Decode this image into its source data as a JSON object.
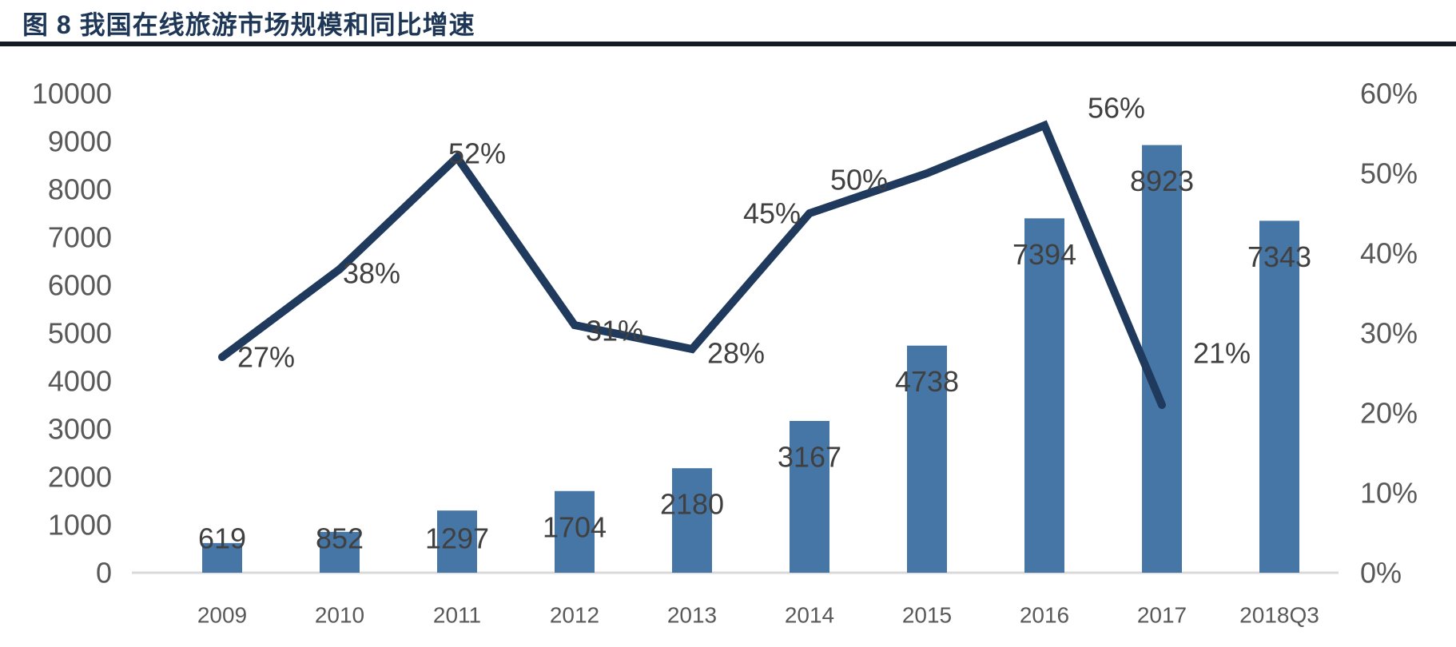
{
  "figure": {
    "title": "图 8 我国在线旅游市场规模和同比增速"
  },
  "colors": {
    "bar": "#4576A5",
    "line": "#1F3A5C",
    "axis_text": "#595959",
    "data_label_text": "#404040",
    "axis_line": "#D9D9D9",
    "title_text": "#1F3756",
    "title_rule": "#141A26"
  },
  "chart_data": {
    "type": "bar",
    "combo": "bar+line dual axis",
    "title": "图 8 我国在线旅游市场规模和同比增速",
    "xlabel": "",
    "ylabel_left": "",
    "ylabel_right": "",
    "grid": false,
    "legend": null,
    "categories": [
      "2009",
      "2010",
      "2011",
      "2012",
      "2013",
      "2014",
      "2015",
      "2016",
      "2017",
      "2018Q3"
    ],
    "series": [
      {
        "name": "在线旅游市场规模",
        "type": "bar",
        "axis": "left",
        "values": [
          619,
          852,
          1297,
          1704,
          2180,
          3167,
          4738,
          7394,
          8923,
          7343
        ],
        "labels": [
          "619",
          "852",
          "1297",
          "1704",
          "2180",
          "3167",
          "4738",
          "7394",
          "8923",
          "7343"
        ]
      },
      {
        "name": "同比增速",
        "type": "line",
        "axis": "right",
        "values": [
          27,
          38,
          52,
          31,
          28,
          45,
          50,
          56,
          21,
          null
        ],
        "labels": [
          "27%",
          "38%",
          "52%",
          "31%",
          "28%",
          "45%",
          "50%",
          "56%",
          "21%",
          null
        ]
      }
    ],
    "left_axis": {
      "min": 0,
      "max": 10000,
      "step": 1000,
      "tick_labels": [
        "0",
        "1000",
        "2000",
        "3000",
        "4000",
        "5000",
        "6000",
        "7000",
        "8000",
        "9000",
        "10000"
      ]
    },
    "right_axis": {
      "min": 0,
      "max": 60,
      "step": 10,
      "tick_labels": [
        "0%",
        "10%",
        "20%",
        "30%",
        "40%",
        "50%",
        "60%"
      ]
    }
  }
}
